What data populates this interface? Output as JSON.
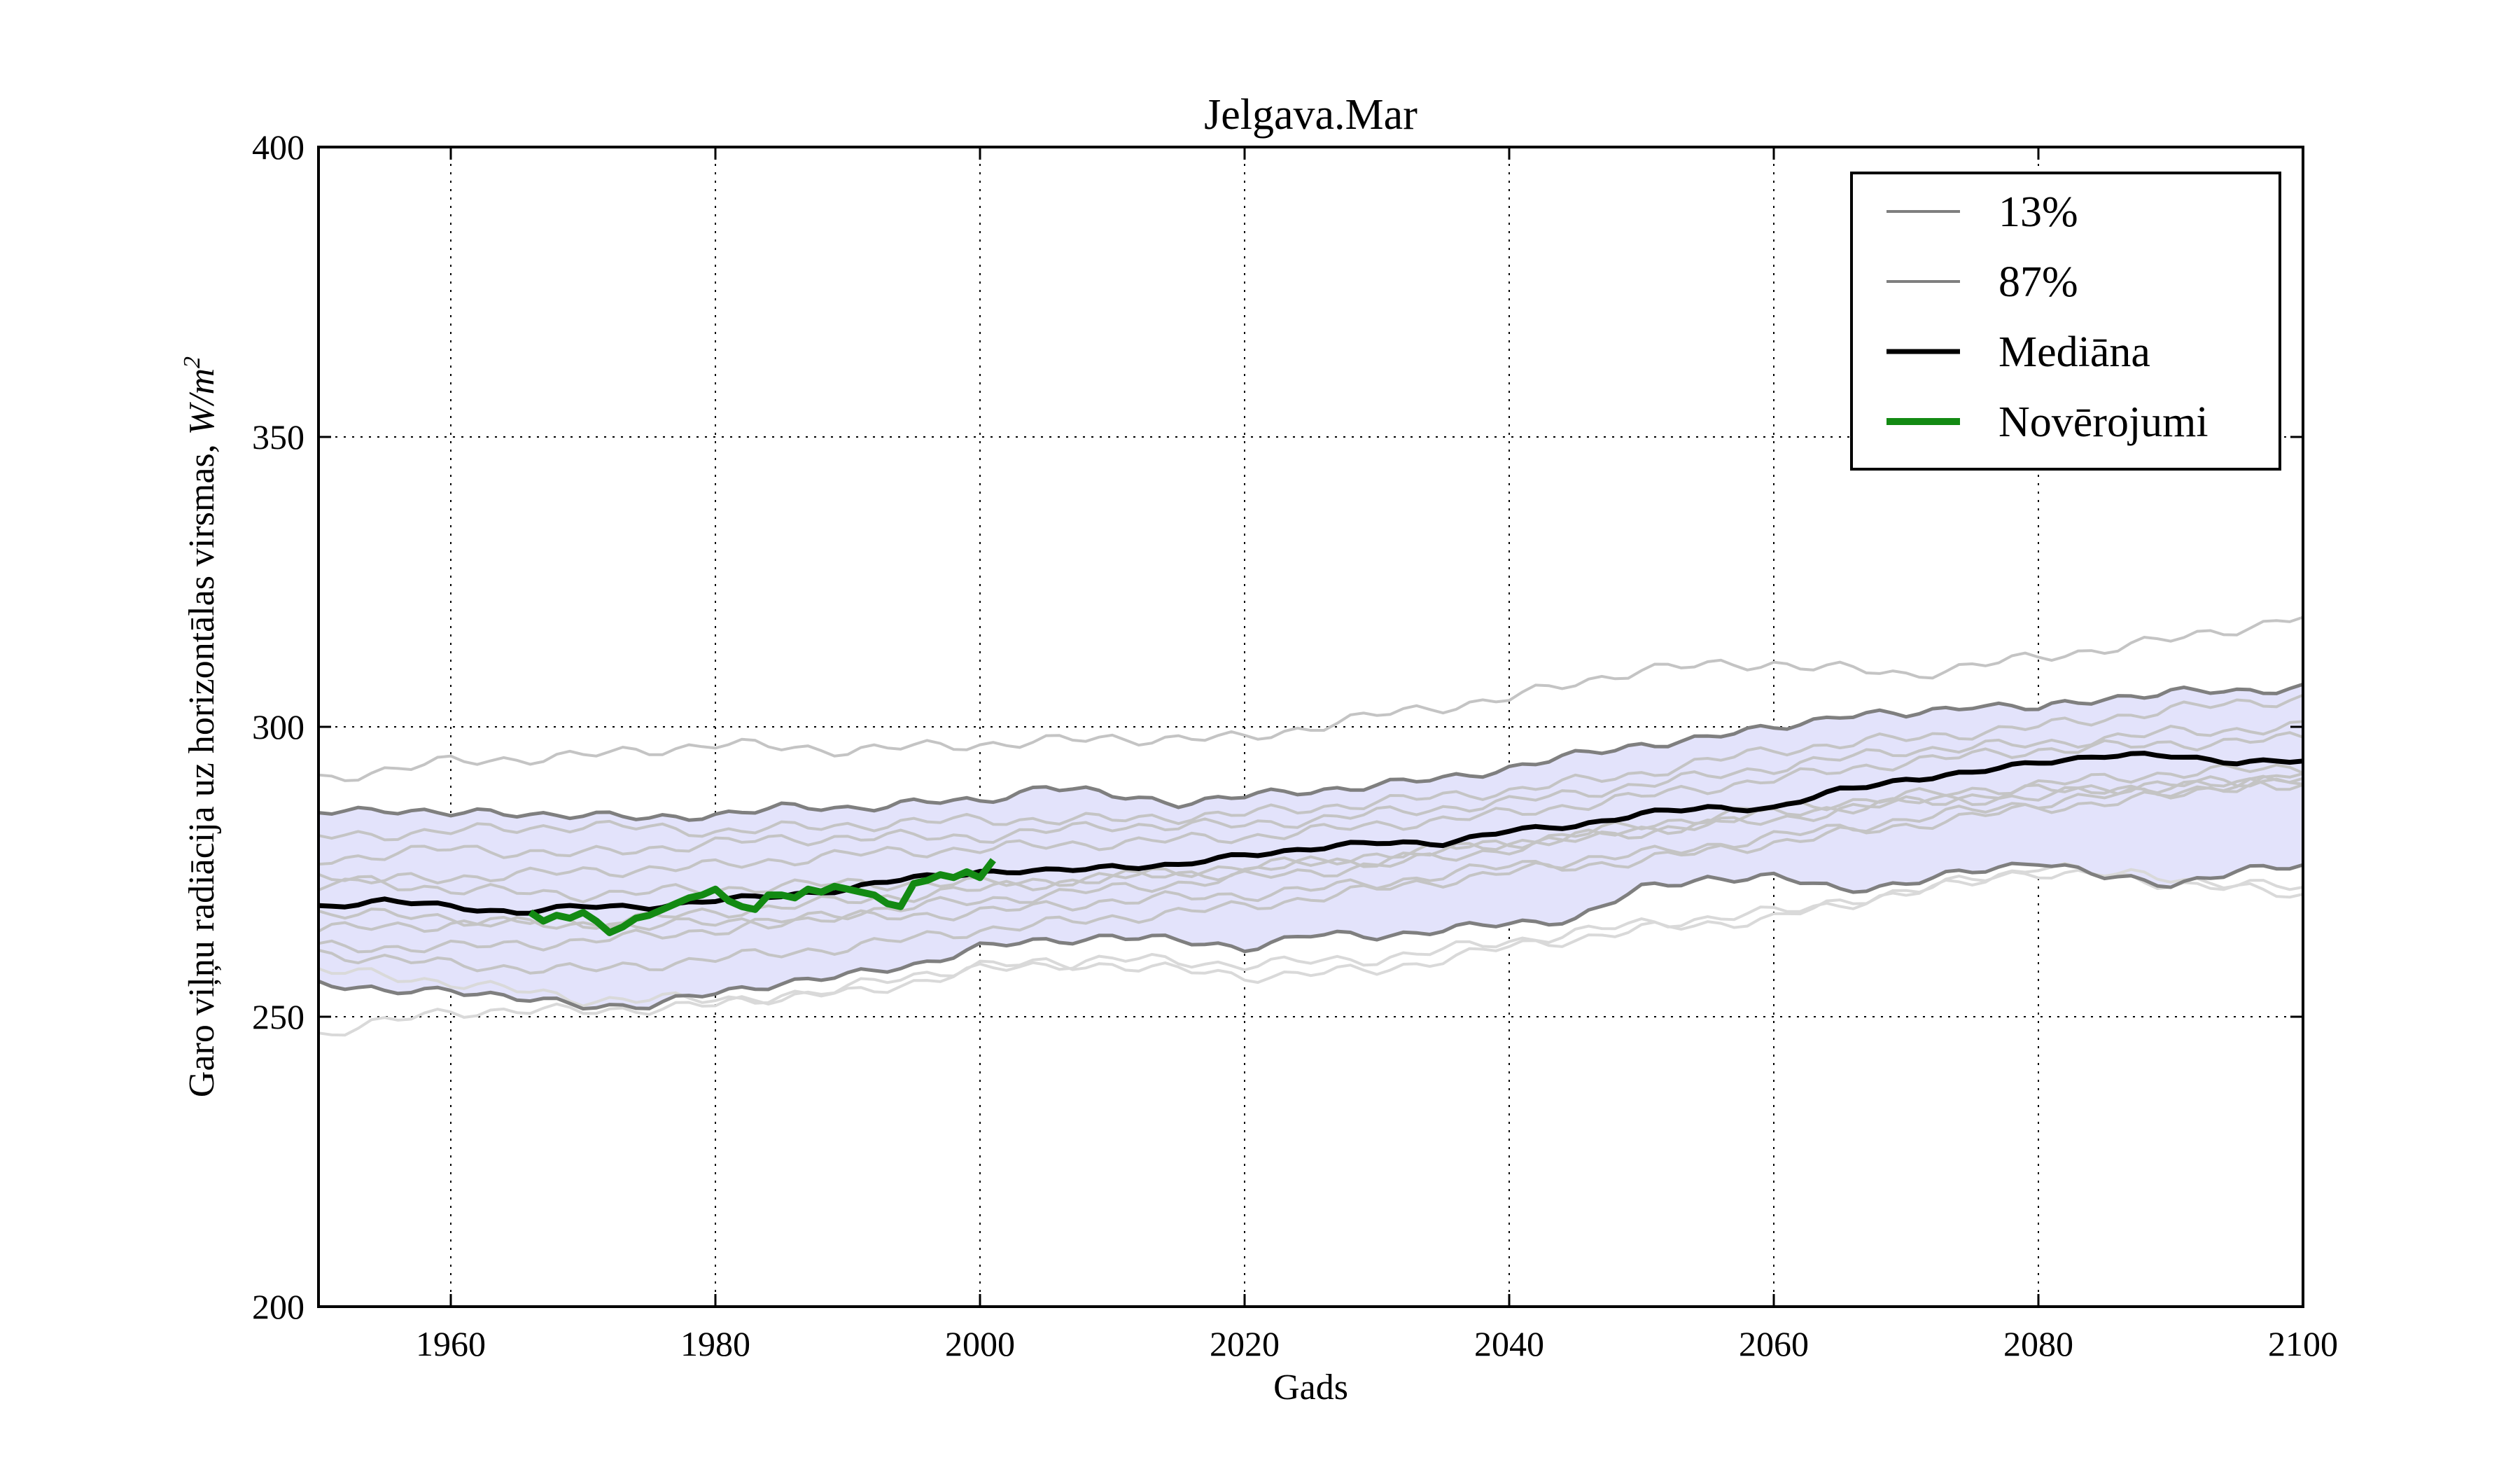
{
  "chart_data": {
    "type": "line",
    "title": "Jelgava.Mar",
    "xlabel": "Gads",
    "ylabel": "Garo viļņu radiācija uz horizontālas virsmas, ",
    "ylabel_unit": "W/m",
    "ylabel_unit_sup": "2",
    "xlim": [
      1950,
      2100
    ],
    "ylim": [
      200,
      400
    ],
    "xticks": [
      1960,
      1980,
      2000,
      2020,
      2040,
      2060,
      2080,
      2100
    ],
    "yticks": [
      200,
      250,
      300,
      350,
      400
    ],
    "grid": true,
    "legend_position": "top-right",
    "colors": {
      "band_fill": "#e3e3fb",
      "band_edge": "#7f7f7f",
      "ensemble": "#c4c4c4",
      "ensemble_light": "#d9d9d9",
      "median": "#000000",
      "observations": "#138a13"
    },
    "legend": [
      {
        "label": "13%",
        "style": "band_edge"
      },
      {
        "label": "87%",
        "style": "band_edge"
      },
      {
        "label": "Mediāna",
        "style": "median"
      },
      {
        "label": "Novērojumi",
        "style": "observations"
      }
    ],
    "series": [
      {
        "name": "13%",
        "x": [
          1950,
          1955,
          1960,
          1965,
          1970,
          1975,
          1980,
          1985,
          1990,
          1995,
          2000,
          2005,
          2010,
          2015,
          2020,
          2025,
          2030,
          2035,
          2040,
          2045,
          2050,
          2055,
          2060,
          2065,
          2070,
          2075,
          2080,
          2085,
          2090,
          2095,
          2100
        ],
        "y": [
          256,
          254,
          255,
          253,
          252,
          252,
          254,
          256,
          257,
          259,
          262,
          263,
          264,
          263,
          262,
          264,
          264,
          265,
          266,
          267,
          272,
          274,
          274,
          272,
          273,
          275,
          277,
          274,
          273,
          275,
          276
        ]
      },
      {
        "name": "87%",
        "x": [
          1950,
          1955,
          1960,
          1965,
          1970,
          1975,
          1980,
          1985,
          1990,
          1995,
          2000,
          2005,
          2010,
          2015,
          2020,
          2025,
          2030,
          2035,
          2040,
          2045,
          2050,
          2055,
          2060,
          2065,
          2070,
          2075,
          2080,
          2085,
          2090,
          2095,
          2100
        ],
        "y": [
          285,
          286,
          285,
          285,
          285,
          284,
          285,
          286,
          286,
          287,
          287,
          290,
          288,
          287,
          288,
          289,
          290,
          291,
          293,
          295,
          297,
          298,
          300,
          302,
          302,
          304,
          303,
          305,
          306,
          306,
          307
        ]
      },
      {
        "name": "Mediāna",
        "x": [
          1950,
          1955,
          1960,
          1965,
          1970,
          1975,
          1980,
          1985,
          1990,
          1995,
          2000,
          2005,
          2010,
          2015,
          2020,
          2025,
          2030,
          2035,
          2040,
          2045,
          2050,
          2055,
          2060,
          2065,
          2070,
          2075,
          2080,
          2085,
          2090,
          2095,
          2100
        ],
        "y": [
          269,
          270,
          269,
          268,
          269,
          269,
          270,
          271,
          272,
          274,
          275,
          275,
          276,
          276,
          278,
          279,
          280,
          280,
          282,
          283,
          285,
          286,
          286,
          289,
          291,
          292,
          294,
          295,
          295,
          294,
          294
        ]
      },
      {
        "name": "Novērojumi",
        "x": [
          1966,
          1967,
          1968,
          1969,
          1970,
          1971,
          1972,
          1973,
          1974,
          1975,
          1976,
          1977,
          1978,
          1979,
          1980,
          1981,
          1982,
          1983,
          1984,
          1985,
          1986,
          1987,
          1988,
          1989,
          1990,
          1991,
          1992,
          1993,
          1994,
          1995,
          1996,
          1997,
          1998,
          1999,
          2000,
          2001
        ],
        "y": [
          268,
          266.5,
          267.5,
          267,
          268,
          266.5,
          264.5,
          265.5,
          267,
          267.5,
          268.5,
          269.5,
          270.5,
          271,
          272,
          270,
          269,
          268.5,
          271,
          271,
          270.5,
          272,
          271.5,
          272.5,
          272,
          271.5,
          271,
          269.5,
          269,
          273,
          273.5,
          274.5,
          274,
          275,
          274,
          277
        ]
      }
    ],
    "ensemble_members": [
      {
        "x": [
          1950,
          1960,
          1970,
          1980,
          1990,
          2000,
          2010,
          2020,
          2030,
          2040,
          2050,
          2060,
          2070,
          2080,
          2090,
          2100
        ],
        "y": [
          291,
          294,
          295,
          297,
          296,
          297,
          298,
          298,
          302,
          305,
          310,
          311,
          309,
          312,
          315,
          319
        ]
      },
      {
        "x": [
          1950,
          1960,
          1970,
          1980,
          1990,
          2000,
          2010,
          2020,
          2030,
          2040,
          2050,
          2060,
          2070,
          2080,
          2090,
          2100
        ],
        "y": [
          247,
          251,
          251,
          252,
          255,
          259,
          259,
          257,
          258,
          262,
          265,
          267,
          272,
          275,
          274,
          272
        ]
      },
      {
        "x": [
          1950,
          1960,
          1970,
          1980,
          1990,
          2000,
          2010,
          2020,
          2030,
          2040,
          2050,
          2060,
          2070,
          2080,
          2090,
          2100
        ],
        "y": [
          258,
          256,
          253,
          253,
          254,
          258,
          260,
          259,
          260,
          263,
          266,
          268,
          271,
          276,
          273,
          271
        ]
      },
      {
        "x": [
          1950,
          1960,
          1970,
          1980,
          1990,
          2000,
          2010,
          2020,
          2030,
          2040,
          2050,
          2060,
          2070,
          2080,
          2090,
          2100
        ],
        "y": [
          281,
          282,
          283,
          282,
          283,
          284,
          284,
          285,
          287,
          289,
          292,
          296,
          298,
          300,
          303,
          305
        ]
      },
      {
        "x": [
          1950,
          1960,
          1970,
          1980,
          1990,
          2000,
          2010,
          2020,
          2030,
          2040,
          2050,
          2060,
          2070,
          2080,
          2090,
          2100
        ],
        "y": [
          277,
          279,
          278,
          280,
          281,
          281,
          283,
          283,
          285,
          287,
          290,
          293,
          296,
          297,
          299,
          300
        ]
      },
      {
        "x": [
          1950,
          1960,
          1970,
          1980,
          1990,
          2000,
          2010,
          2020,
          2030,
          2040,
          2050,
          2060,
          2070,
          2080,
          2090,
          2100
        ],
        "y": [
          273,
          274,
          275,
          276,
          278,
          279,
          280,
          281,
          283,
          285,
          288,
          291,
          294,
          296,
          297,
          298
        ]
      },
      {
        "x": [
          1950,
          1960,
          1970,
          1980,
          1990,
          2000,
          2010,
          2020,
          2030,
          2040,
          2050,
          2060,
          2070,
          2080,
          2090,
          2100
        ],
        "y": [
          265,
          266,
          266,
          268,
          270,
          272,
          274,
          275,
          278,
          280,
          283,
          286,
          288,
          290,
          292,
          293
        ]
      },
      {
        "x": [
          1950,
          1960,
          1970,
          1980,
          1990,
          2000,
          2010,
          2020,
          2030,
          2040,
          2050,
          2060,
          2070,
          2080,
          2090,
          2100
        ],
        "y": [
          262,
          262,
          263,
          265,
          268,
          270,
          272,
          274,
          276,
          279,
          282,
          284,
          287,
          289,
          290,
          291
        ]
      },
      {
        "x": [
          1950,
          1960,
          1970,
          1980,
          1990,
          2000,
          2010,
          2020,
          2030,
          2040,
          2050,
          2060,
          2070,
          2080,
          2090,
          2100
        ],
        "y": [
          261,
          259,
          258,
          260,
          262,
          265,
          267,
          269,
          272,
          275,
          277,
          280,
          283,
          286,
          288,
          292
        ]
      },
      {
        "x": [
          1950,
          1960,
          1970,
          1980,
          1990,
          2000,
          2010,
          2020,
          2030,
          2040,
          2050,
          2060,
          2070,
          2080,
          2090,
          2100
        ],
        "y": [
          268,
          267,
          266,
          266,
          267,
          268,
          270,
          271,
          273,
          276,
          278,
          281,
          284,
          287,
          289,
          291
        ]
      },
      {
        "x": [
          1950,
          1960,
          1970,
          1980,
          1990,
          2000,
          2010,
          2020,
          2030,
          2040,
          2050,
          2060,
          2070,
          2080,
          2090,
          2100
        ],
        "y": [
          274,
          272,
          271,
          272,
          273,
          273,
          274,
          276,
          277,
          280,
          282,
          285,
          287,
          288,
          290,
          290
        ]
      }
    ]
  }
}
